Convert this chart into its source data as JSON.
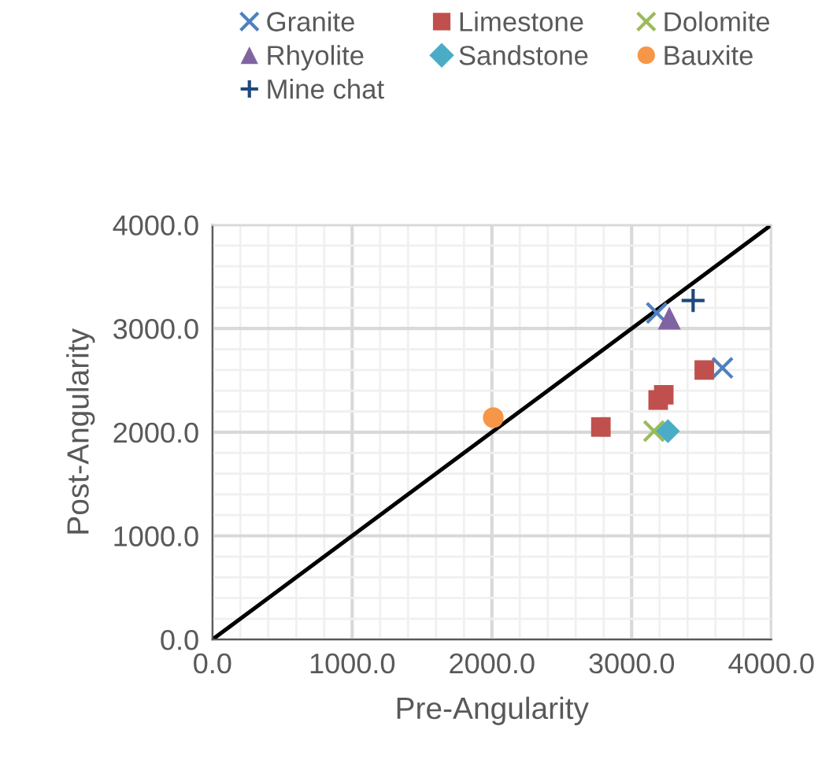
{
  "chart_data": {
    "type": "scatter",
    "xlabel": "Pre-Angularity",
    "ylabel": "Post-Angularity",
    "xlim": [
      0,
      4000
    ],
    "ylim": [
      0,
      4000
    ],
    "xticks": [
      {
        "value": 0,
        "label": "0.0"
      },
      {
        "value": 1000,
        "label": "1000.0"
      },
      {
        "value": 2000,
        "label": "2000.0"
      },
      {
        "value": 3000,
        "label": "3000.0"
      },
      {
        "value": 4000,
        "label": "4000.0"
      }
    ],
    "yticks": [
      {
        "value": 0,
        "label": "0.0"
      },
      {
        "value": 1000,
        "label": "1000.0"
      },
      {
        "value": 2000,
        "label": "2000.0"
      },
      {
        "value": 3000,
        "label": "3000.0"
      },
      {
        "value": 4000,
        "label": "4000.0"
      }
    ],
    "grid": true,
    "legend": "top",
    "series": [
      {
        "name": "Granite",
        "color": "#4f81bd",
        "marker": "cross",
        "x": [
          3180,
          3650
        ],
        "values": [
          3150,
          2620
        ]
      },
      {
        "name": "Limestone",
        "color": "#c0504d",
        "marker": "square",
        "x": [
          3520,
          3230,
          3190,
          2780
        ],
        "values": [
          2600,
          2360,
          2310,
          2050
        ]
      },
      {
        "name": "Dolomite",
        "color": "#9bbb59",
        "marker": "cross",
        "x": [
          3160
        ],
        "values": [
          2010
        ]
      },
      {
        "name": "Rhyolite",
        "color": "#8064a2",
        "marker": "triangle",
        "x": [
          3270
        ],
        "values": [
          3100
        ]
      },
      {
        "name": "Sandstone",
        "color": "#4bacc6",
        "marker": "diamond",
        "x": [
          3260
        ],
        "values": [
          2010
        ]
      },
      {
        "name": "Bauxite",
        "color": "#f79646",
        "marker": "circle",
        "x": [
          2010
        ],
        "values": [
          2140
        ]
      },
      {
        "name": "Mine chat",
        "color": "#1f497d",
        "marker": "plus",
        "x": [
          3440
        ],
        "values": [
          3270
        ]
      },
      {
        "type": "line",
        "color": "#000000",
        "marker": "none",
        "x": [
          0,
          4000
        ],
        "values": [
          0,
          4000
        ]
      }
    ]
  }
}
